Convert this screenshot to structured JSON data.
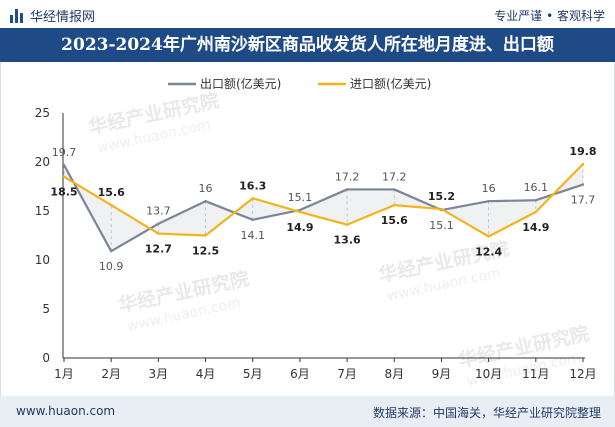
{
  "header": {
    "brand": "华经情报网",
    "tagline": "专业严谨 • 客观科学",
    "title": "2023-2024年广州南沙新区商品收发货人所在地月度进、出口额"
  },
  "footer": {
    "website": "www.huaon.com",
    "source": "数据来源：中国海关，华经产业研究院整理"
  },
  "watermark": {
    "text": "华经产业研究院",
    "url": "www.huaon.com"
  },
  "colors": {
    "export": "#7c8597",
    "import": "#f2b418",
    "title_bg": "#1e4a86"
  },
  "chart_data": {
    "type": "line",
    "categories": [
      "1月",
      "2月",
      "3月",
      "4月",
      "5月",
      "6月",
      "7月",
      "8月",
      "9月",
      "10月",
      "11月",
      "12月"
    ],
    "series": [
      {
        "name": "出口额(亿美元)",
        "values": [
          19.7,
          10.9,
          13.7,
          16,
          14.1,
          15.1,
          17.2,
          17.2,
          15.1,
          16,
          16.1,
          17.7
        ]
      },
      {
        "name": "进口额(亿美元)",
        "values": [
          18.5,
          15.6,
          12.7,
          12.5,
          16.3,
          14.9,
          13.6,
          15.6,
          15.2,
          12.4,
          14.9,
          19.8
        ]
      }
    ],
    "ylim": [
      0,
      25
    ],
    "yticks": [
      0,
      5,
      10,
      15,
      20,
      25
    ],
    "grid": false,
    "legend": "top-center"
  }
}
